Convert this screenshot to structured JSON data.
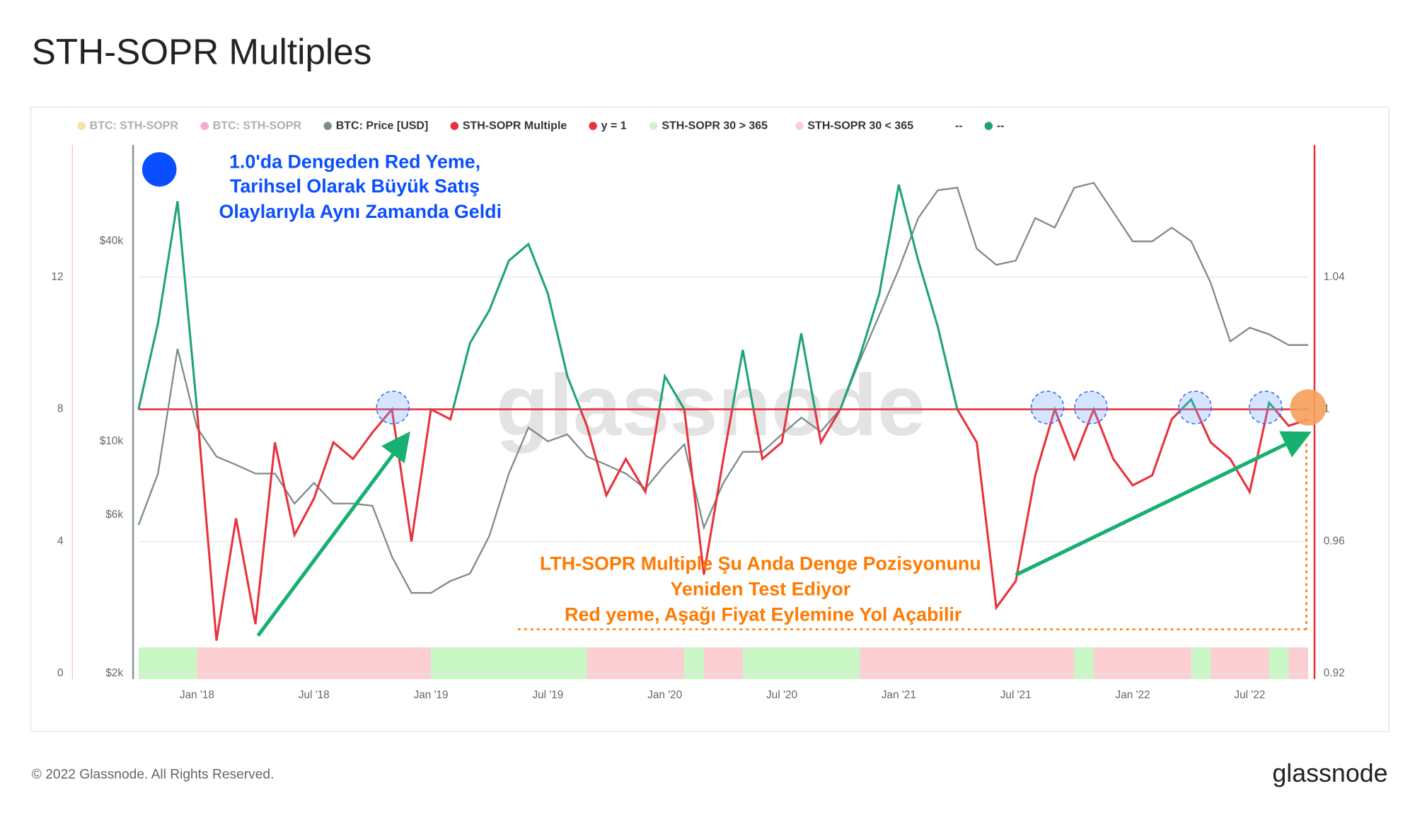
{
  "chart_data": {
    "type": "line",
    "title": "STH-SOPR Multiples",
    "x": [
      "2017-10",
      "2017-11",
      "2017-12",
      "2018-01",
      "2018-02",
      "2018-03",
      "2018-04",
      "2018-05",
      "2018-06",
      "2018-07",
      "2018-08",
      "2018-09",
      "2018-10",
      "2018-11",
      "2018-12",
      "2019-01",
      "2019-02",
      "2019-03",
      "2019-04",
      "2019-05",
      "2019-06",
      "2019-07",
      "2019-08",
      "2019-09",
      "2019-10",
      "2019-11",
      "2019-12",
      "2020-01",
      "2020-02",
      "2020-03",
      "2020-04",
      "2020-05",
      "2020-06",
      "2020-07",
      "2020-08",
      "2020-09",
      "2020-10",
      "2020-11",
      "2020-12",
      "2021-01",
      "2021-02",
      "2021-03",
      "2021-04",
      "2021-05",
      "2021-06",
      "2021-07",
      "2021-08",
      "2021-09",
      "2021-10",
      "2021-11",
      "2021-12",
      "2022-01",
      "2022-02",
      "2022-03",
      "2022-04",
      "2022-05",
      "2022-06",
      "2022-07",
      "2022-08",
      "2022-09",
      "2022-10"
    ],
    "xlim": [
      "2017-10",
      "2022-10"
    ],
    "xticks": [
      {
        "value": "2018-01",
        "label": "Jan '18"
      },
      {
        "value": "2018-07",
        "label": "Jul '18"
      },
      {
        "value": "2019-01",
        "label": "Jan '19"
      },
      {
        "value": "2019-07",
        "label": "Jul '19"
      },
      {
        "value": "2020-01",
        "label": "Jan '20"
      },
      {
        "value": "2020-07",
        "label": "Jul '20"
      },
      {
        "value": "2021-01",
        "label": "Jan '21"
      },
      {
        "value": "2021-07",
        "label": "Jul '21"
      },
      {
        "value": "2022-01",
        "label": "Jan '22"
      },
      {
        "value": "2022-07",
        "label": "Jul '22"
      }
    ],
    "ylog": true,
    "ylim": [
      2000,
      78000
    ],
    "yticks": [
      {
        "value": 2000,
        "label": "$2k"
      },
      {
        "value": 6000,
        "label": "$6k"
      },
      {
        "value": 10000,
        "label": "$10k"
      },
      {
        "value": 40000,
        "label": "$40k"
      }
    ],
    "y2lim": [
      0.92,
      1.08
    ],
    "y2ticks": [
      0.92,
      0.96,
      1,
      1.04
    ],
    "y3lim": [
      0,
      16
    ],
    "y3ticks": [
      0,
      4,
      8,
      12
    ],
    "grid": true,
    "series": [
      {
        "name": "BTC: Price [USD]",
        "color": "#7d8a8e",
        "axis": "y",
        "values": [
          5600,
          8000,
          19000,
          11000,
          9000,
          8500,
          8000,
          8000,
          6500,
          7500,
          6500,
          6500,
          6400,
          4500,
          3500,
          3500,
          3800,
          4000,
          5200,
          8000,
          11000,
          10000,
          10500,
          9000,
          8500,
          8000,
          7200,
          8500,
          9800,
          5500,
          7500,
          9300,
          9300,
          10500,
          11800,
          10700,
          12500,
          17500,
          24000,
          33000,
          47000,
          57000,
          58000,
          38000,
          34000,
          35000,
          47000,
          44000,
          58000,
          60000,
          49000,
          40000,
          40000,
          44000,
          40000,
          30000,
          20000,
          22000,
          21000,
          19500,
          19500
        ]
      },
      {
        "name": "STH-SOPR Multiple",
        "color": "#e8323c",
        "color_above": "#1fa374",
        "axis": "y2",
        "values": [
          1.0,
          1.026,
          1.063,
          1.0,
          0.93,
          0.967,
          0.935,
          0.99,
          0.962,
          0.973,
          0.99,
          0.985,
          0.993,
          1.0,
          0.96,
          1.0,
          0.997,
          1.02,
          1.03,
          1.045,
          1.05,
          1.035,
          1.01,
          0.995,
          0.974,
          0.985,
          0.975,
          1.01,
          1.0,
          0.95,
          0.985,
          1.018,
          0.985,
          0.99,
          1.023,
          0.99,
          1.0,
          1.016,
          1.035,
          1.068,
          1.045,
          1.025,
          1.0,
          0.99,
          0.94,
          0.948,
          0.98,
          1.0,
          0.985,
          1.0,
          0.985,
          0.977,
          0.98,
          0.997,
          1.003,
          0.99,
          0.985,
          0.975,
          1.002,
          0.995,
          0.997
        ]
      }
    ],
    "hline": {
      "name": "y = 1",
      "color": "#e8323c",
      "value": 1,
      "axis": "y2"
    },
    "periods": [
      {
        "name": "STH-SOPR 30 > 365",
        "color": "#c8f7c5",
        "ranges": [
          [
            "2017-10",
            "2018-01"
          ],
          [
            "2019-01",
            "2019-09"
          ],
          [
            "2020-02",
            "2020-03"
          ],
          [
            "2020-05",
            "2020-11"
          ],
          [
            "2021-10",
            "2021-11"
          ],
          [
            "2022-04",
            "2022-05"
          ],
          [
            "2022-08",
            "2022-09"
          ]
        ]
      },
      {
        "name": "STH-SOPR 30 < 365",
        "color": "#fbcfd2",
        "ranges": [
          [
            "2018-01",
            "2019-01"
          ],
          [
            "2019-09",
            "2020-02"
          ],
          [
            "2020-03",
            "2020-05"
          ],
          [
            "2020-11",
            "2021-10"
          ],
          [
            "2021-11",
            "2022-04"
          ],
          [
            "2022-05",
            "2022-08"
          ],
          [
            "2022-09",
            "2022-10"
          ]
        ]
      }
    ],
    "inactive_series": [
      {
        "name": "BTC: STH-SOPR",
        "color": "#f0b847"
      },
      {
        "name": "BTC: STH-SOPR",
        "color": "#e8449a"
      }
    ],
    "extra_legend": [
      {
        "name": "--"
      },
      {
        "name": "--",
        "color": "#1fa374"
      }
    ],
    "annotations": {
      "top": [
        "1.0'da Dengeden Red Yeme,",
        "Tarihsel Olarak Büyük Satış",
        "Olaylarıyla Aynı Zamanda Geldi"
      ],
      "bottom": [
        "LTH-SOPR Multiple Şu Anda Denge Pozisyonunu",
        "Yeniden Test Ediyor",
        "Red yeme, Aşağı Fiyat Eylemine Yol Açabilir"
      ]
    },
    "watermark": "glassnode",
    "footer": "© 2022 Glassnode. All Rights Reserved.",
    "logo": "glassnode"
  }
}
